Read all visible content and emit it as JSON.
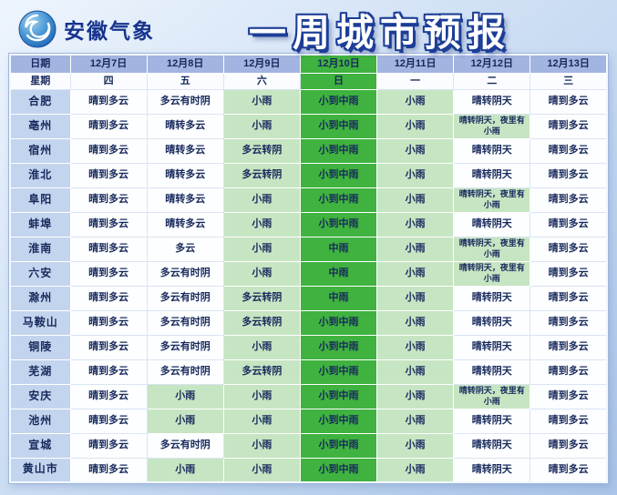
{
  "header": {
    "brand": "安徽气象",
    "title": "一周城市预报"
  },
  "colors": {
    "brand_blue": "#16338e",
    "header_row_blue": "#a2b4e0",
    "city_col_blue": "#c3d4ee",
    "rain_heavy_green": "#3fb23f",
    "rain_light_green": "#c6e5c2"
  },
  "table": {
    "corner_label": "日期",
    "week_label": "星期",
    "dates": [
      "12月7日",
      "12月8日",
      "12月9日",
      "12月10日",
      "12月11日",
      "12月12日",
      "12月13日"
    ],
    "weekdays": [
      "四",
      "五",
      "六",
      "日",
      "一",
      "二",
      "三"
    ],
    "highlight_column": 3,
    "rows": [
      {
        "city": "合肥",
        "cells": [
          {
            "t": "晴到多云",
            "hl": 0
          },
          {
            "t": "多云有时阴",
            "hl": 0
          },
          {
            "t": "小雨",
            "hl": 1
          },
          {
            "t": "小到中雨",
            "hl": 2
          },
          {
            "t": "小雨",
            "hl": 1
          },
          {
            "t": "晴转阴天",
            "hl": 0
          },
          {
            "t": "晴到多云",
            "hl": 0
          }
        ]
      },
      {
        "city": "亳州",
        "cells": [
          {
            "t": "晴到多云",
            "hl": 0
          },
          {
            "t": "晴转多云",
            "hl": 0
          },
          {
            "t": "小雨",
            "hl": 1
          },
          {
            "t": "小到中雨",
            "hl": 2
          },
          {
            "t": "小雨",
            "hl": 1
          },
          {
            "t": "晴转阴天，夜里有小雨",
            "hl": 1
          },
          {
            "t": "晴到多云",
            "hl": 0
          }
        ]
      },
      {
        "city": "宿州",
        "cells": [
          {
            "t": "晴到多云",
            "hl": 0
          },
          {
            "t": "晴转多云",
            "hl": 0
          },
          {
            "t": "多云转阴",
            "hl": 1
          },
          {
            "t": "小到中雨",
            "hl": 2
          },
          {
            "t": "小雨",
            "hl": 1
          },
          {
            "t": "晴转阴天",
            "hl": 0
          },
          {
            "t": "晴到多云",
            "hl": 0
          }
        ]
      },
      {
        "city": "淮北",
        "cells": [
          {
            "t": "晴到多云",
            "hl": 0
          },
          {
            "t": "晴转多云",
            "hl": 0
          },
          {
            "t": "多云转阴",
            "hl": 1
          },
          {
            "t": "小到中雨",
            "hl": 2
          },
          {
            "t": "小雨",
            "hl": 1
          },
          {
            "t": "晴转阴天",
            "hl": 0
          },
          {
            "t": "晴到多云",
            "hl": 0
          }
        ]
      },
      {
        "city": "阜阳",
        "cells": [
          {
            "t": "晴到多云",
            "hl": 0
          },
          {
            "t": "晴转多云",
            "hl": 0
          },
          {
            "t": "小雨",
            "hl": 1
          },
          {
            "t": "小到中雨",
            "hl": 2
          },
          {
            "t": "小雨",
            "hl": 1
          },
          {
            "t": "晴转阴天，夜里有小雨",
            "hl": 1
          },
          {
            "t": "晴到多云",
            "hl": 0
          }
        ]
      },
      {
        "city": "蚌埠",
        "cells": [
          {
            "t": "晴到多云",
            "hl": 0
          },
          {
            "t": "晴转多云",
            "hl": 0
          },
          {
            "t": "小雨",
            "hl": 1
          },
          {
            "t": "小到中雨",
            "hl": 2
          },
          {
            "t": "小雨",
            "hl": 1
          },
          {
            "t": "晴转阴天",
            "hl": 0
          },
          {
            "t": "晴到多云",
            "hl": 0
          }
        ]
      },
      {
        "city": "淮南",
        "cells": [
          {
            "t": "晴到多云",
            "hl": 0
          },
          {
            "t": "多云",
            "hl": 0
          },
          {
            "t": "小雨",
            "hl": 1
          },
          {
            "t": "中雨",
            "hl": 2
          },
          {
            "t": "小雨",
            "hl": 1
          },
          {
            "t": "晴转阴天，夜里有小雨",
            "hl": 1
          },
          {
            "t": "晴到多云",
            "hl": 0
          }
        ]
      },
      {
        "city": "六安",
        "cells": [
          {
            "t": "晴到多云",
            "hl": 0
          },
          {
            "t": "多云有时阴",
            "hl": 0
          },
          {
            "t": "小雨",
            "hl": 1
          },
          {
            "t": "中雨",
            "hl": 2
          },
          {
            "t": "小雨",
            "hl": 1
          },
          {
            "t": "晴转阴天，夜里有小雨",
            "hl": 1
          },
          {
            "t": "晴到多云",
            "hl": 0
          }
        ]
      },
      {
        "city": "滁州",
        "cells": [
          {
            "t": "晴到多云",
            "hl": 0
          },
          {
            "t": "多云有时阴",
            "hl": 0
          },
          {
            "t": "多云转阴",
            "hl": 1
          },
          {
            "t": "中雨",
            "hl": 2
          },
          {
            "t": "小雨",
            "hl": 1
          },
          {
            "t": "晴转阴天",
            "hl": 0
          },
          {
            "t": "晴到多云",
            "hl": 0
          }
        ]
      },
      {
        "city": "马鞍山",
        "cells": [
          {
            "t": "晴到多云",
            "hl": 0
          },
          {
            "t": "多云有时阴",
            "hl": 0
          },
          {
            "t": "多云转阴",
            "hl": 1
          },
          {
            "t": "小到中雨",
            "hl": 2
          },
          {
            "t": "小雨",
            "hl": 1
          },
          {
            "t": "晴转阴天",
            "hl": 0
          },
          {
            "t": "晴到多云",
            "hl": 0
          }
        ]
      },
      {
        "city": "铜陵",
        "cells": [
          {
            "t": "晴到多云",
            "hl": 0
          },
          {
            "t": "多云有时阴",
            "hl": 0
          },
          {
            "t": "小雨",
            "hl": 1
          },
          {
            "t": "小到中雨",
            "hl": 2
          },
          {
            "t": "小雨",
            "hl": 1
          },
          {
            "t": "晴转阴天",
            "hl": 0
          },
          {
            "t": "晴到多云",
            "hl": 0
          }
        ]
      },
      {
        "city": "芜湖",
        "cells": [
          {
            "t": "晴到多云",
            "hl": 0
          },
          {
            "t": "多云有时阴",
            "hl": 0
          },
          {
            "t": "多云转阴",
            "hl": 1
          },
          {
            "t": "小到中雨",
            "hl": 2
          },
          {
            "t": "小雨",
            "hl": 1
          },
          {
            "t": "晴转阴天",
            "hl": 0
          },
          {
            "t": "晴到多云",
            "hl": 0
          }
        ]
      },
      {
        "city": "安庆",
        "cells": [
          {
            "t": "晴到多云",
            "hl": 0
          },
          {
            "t": "小雨",
            "hl": 1
          },
          {
            "t": "小雨",
            "hl": 1
          },
          {
            "t": "小到中雨",
            "hl": 2
          },
          {
            "t": "小雨",
            "hl": 1
          },
          {
            "t": "晴转阴天，夜里有小雨",
            "hl": 1
          },
          {
            "t": "晴到多云",
            "hl": 0
          }
        ]
      },
      {
        "city": "池州",
        "cells": [
          {
            "t": "晴到多云",
            "hl": 0
          },
          {
            "t": "小雨",
            "hl": 1
          },
          {
            "t": "小雨",
            "hl": 1
          },
          {
            "t": "小到中雨",
            "hl": 2
          },
          {
            "t": "小雨",
            "hl": 1
          },
          {
            "t": "晴转阴天",
            "hl": 0
          },
          {
            "t": "晴到多云",
            "hl": 0
          }
        ]
      },
      {
        "city": "宣城",
        "cells": [
          {
            "t": "晴到多云",
            "hl": 0
          },
          {
            "t": "多云有时阴",
            "hl": 0
          },
          {
            "t": "小雨",
            "hl": 1
          },
          {
            "t": "小到中雨",
            "hl": 2
          },
          {
            "t": "小雨",
            "hl": 1
          },
          {
            "t": "晴转阴天",
            "hl": 0
          },
          {
            "t": "晴到多云",
            "hl": 0
          }
        ]
      },
      {
        "city": "黄山市",
        "cells": [
          {
            "t": "晴到多云",
            "hl": 0
          },
          {
            "t": "小雨",
            "hl": 1
          },
          {
            "t": "小雨",
            "hl": 1
          },
          {
            "t": "小到中雨",
            "hl": 2
          },
          {
            "t": "小雨",
            "hl": 1
          },
          {
            "t": "晴转阴天",
            "hl": 0
          },
          {
            "t": "晴到多云",
            "hl": 0
          }
        ]
      }
    ]
  }
}
